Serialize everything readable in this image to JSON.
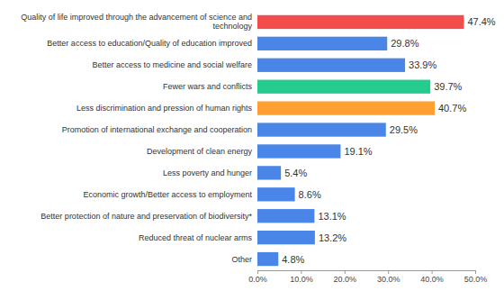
{
  "chart_data": {
    "type": "bar",
    "orientation": "horizontal",
    "categories": [
      "Quality of life improved through the advancement of science and technology",
      "Better access to education/Quality of education improved",
      "Better access to medicine and social welfare",
      "Fewer wars and conflicts",
      "Less discrimination and pression of human rights",
      "Promotion of international exchange and cooperation",
      "Development of clean energy",
      "Less poverty and hunger",
      "Economic growth/Better access to employment",
      "Better protection of nature and preservation of biodiversity*",
      "Reduced threat of nuclear arms",
      "Other"
    ],
    "values": [
      47.4,
      29.8,
      33.9,
      39.7,
      40.7,
      29.5,
      19.1,
      5.4,
      8.6,
      13.1,
      13.2,
      4.8
    ],
    "value_labels": [
      "47.4%",
      "29.8%",
      "33.9%",
      "39.7%",
      "40.7%",
      "29.5%",
      "19.1%",
      "5.4%",
      "8.6%",
      "13.1%",
      "13.2%",
      "4.8%"
    ],
    "colors": [
      "#f44b4b",
      "#4a86e8",
      "#4a86e8",
      "#26cc8f",
      "#ffa030",
      "#4a86e8",
      "#4a86e8",
      "#4a86e8",
      "#4a86e8",
      "#4a86e8",
      "#4a86e8",
      "#4a86e8"
    ],
    "xlim": [
      0,
      50
    ],
    "xticks": [
      {
        "value": 0,
        "label": "0.0%"
      },
      {
        "value": 10,
        "label": "10.0%"
      },
      {
        "value": 20,
        "label": "20.0%"
      },
      {
        "value": 30,
        "label": "30.0%"
      },
      {
        "value": 40,
        "label": "40.0%"
      },
      {
        "value": 50,
        "label": "50.0%"
      }
    ],
    "grid": false,
    "data_labels": true
  }
}
